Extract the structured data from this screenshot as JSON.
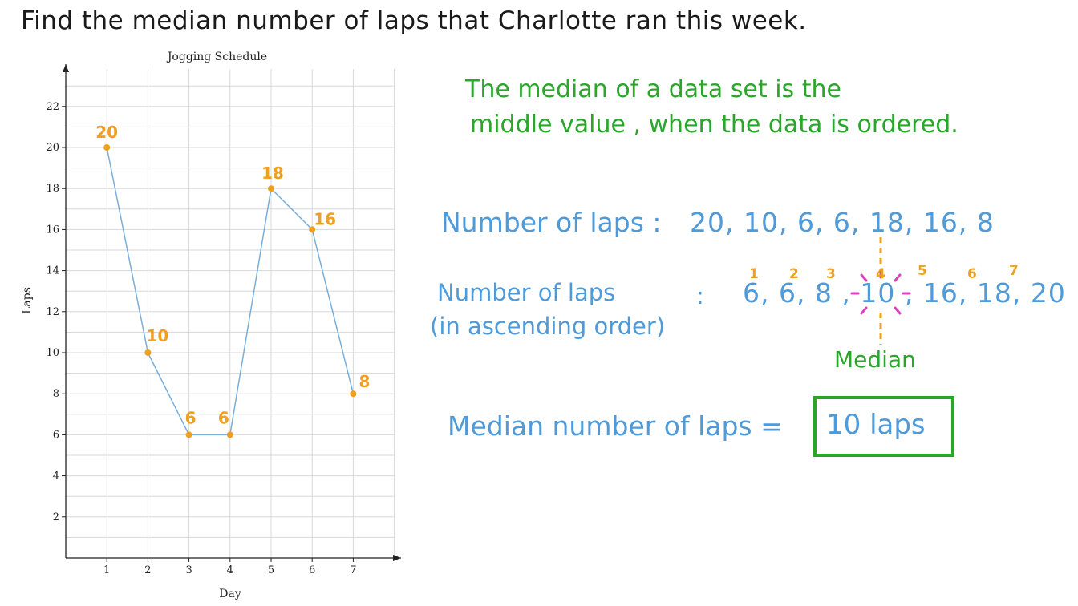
{
  "question": "Find the median number of laps that Charlotte ran this week.",
  "definition": {
    "line1": "The median of a data set is the",
    "line2": "middle value , when the data is ordered."
  },
  "laps": {
    "label": "Number of laps :",
    "values_text": "20, 10, 6, 6, 18, 16, 8"
  },
  "sorted": {
    "label_line1": "Number of laps",
    "label_line2": "(in ascending order)",
    "colon": ":",
    "values_text": "6, 6, 8 , 10 , 16, 18, 20",
    "indices": [
      "1",
      "2",
      "3",
      "4",
      "5",
      "6",
      "7"
    ],
    "median_label": "Median"
  },
  "result": {
    "label": "Median number of laps =",
    "value": "10 laps"
  },
  "colors": {
    "line": "#7aaed6",
    "point": "#f0a020",
    "label": "#f0a020",
    "grid": "#d8d8d8",
    "axis": "#222222",
    "green": "#2aa62a",
    "blue": "#4f9ad9",
    "magenta": "#e040c0"
  },
  "chart_data": {
    "type": "line",
    "title": "Jogging Schedule",
    "xlabel": "Day",
    "ylabel": "Laps",
    "x": [
      1,
      2,
      3,
      4,
      5,
      6,
      7
    ],
    "values": [
      20,
      10,
      6,
      6,
      18,
      16,
      8
    ],
    "point_labels": [
      "20",
      "10",
      "6",
      "6",
      "18",
      "16",
      "8"
    ],
    "xlim": [
      0,
      7
    ],
    "ylim": [
      0,
      22
    ],
    "xticks": [
      "1",
      "2",
      "3",
      "4",
      "5",
      "6",
      "7"
    ],
    "yticks": [
      "2",
      "4",
      "6",
      "8",
      "10",
      "12",
      "14",
      "16",
      "18",
      "20",
      "22"
    ],
    "grid": true
  }
}
